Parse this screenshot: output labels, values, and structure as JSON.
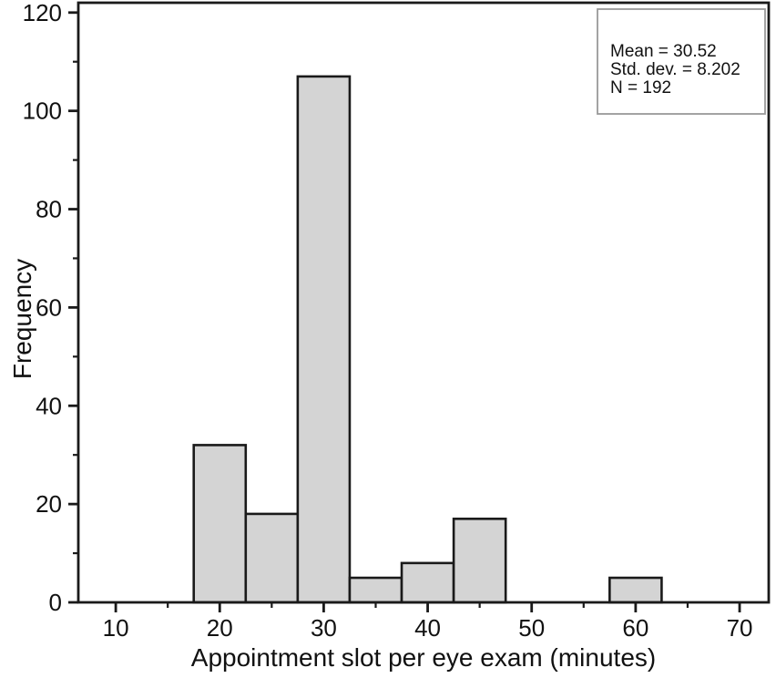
{
  "chart_data": {
    "type": "bar",
    "subtype": "histogram",
    "title": "",
    "xlabel": "Appointment slot per eye exam (minutes)",
    "ylabel": "Frequency",
    "bin_width": 5,
    "bins": [
      {
        "start": 17.5,
        "end": 22.5,
        "frequency": 32
      },
      {
        "start": 22.5,
        "end": 27.5,
        "frequency": 18
      },
      {
        "start": 27.5,
        "end": 32.5,
        "frequency": 107
      },
      {
        "start": 32.5,
        "end": 37.5,
        "frequency": 5
      },
      {
        "start": 37.5,
        "end": 42.5,
        "frequency": 8
      },
      {
        "start": 42.5,
        "end": 47.5,
        "frequency": 17
      },
      {
        "start": 47.5,
        "end": 52.5,
        "frequency": 0
      },
      {
        "start": 52.5,
        "end": 57.5,
        "frequency": 0
      },
      {
        "start": 57.5,
        "end": 62.5,
        "frequency": 5
      }
    ],
    "x_ticks_major": [
      10,
      20,
      30,
      40,
      50,
      60,
      70
    ],
    "x_ticks_minor": [
      15,
      25,
      35,
      45,
      55,
      65
    ],
    "y_ticks_major": [
      0,
      20,
      40,
      60,
      80,
      100,
      120
    ],
    "y_ticks_minor": [
      10,
      30,
      50,
      70,
      90,
      110
    ],
    "xlim": [
      6.4,
      72.8
    ],
    "ylim": [
      0,
      122
    ],
    "grid": false,
    "legend_position": "top-right",
    "colors": {
      "bar_fill": "#d4d4d4",
      "bar_stroke": "#1a1a1a",
      "frame_stroke": "#1a1a1a",
      "stats_box_border": "#999999",
      "text": "#111111",
      "background": "#ffffff"
    },
    "stats": {
      "lines": [
        "Mean = 30.52",
        "Std. dev. = 8.202",
        "N = 192"
      ]
    }
  }
}
